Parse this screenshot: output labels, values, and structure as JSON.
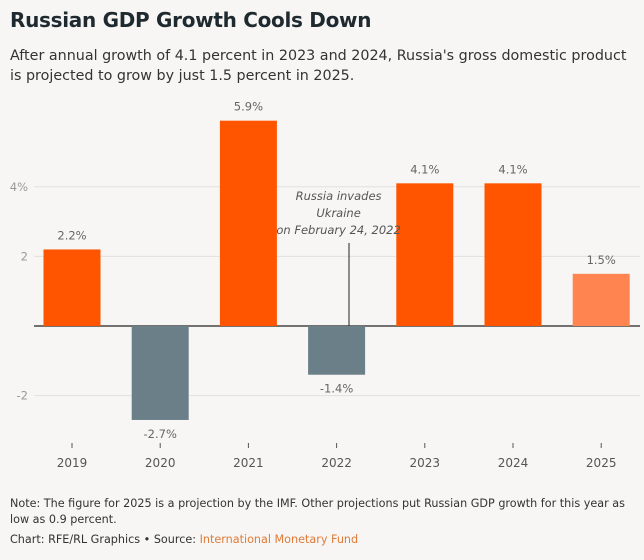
{
  "title": "Russian GDP Growth Cools Down",
  "subtitle": "After annual growth of 4.1 percent in 2023 and 2024, Russia's gross domestic product is projected to grow by just 1.5 percent in 2025.",
  "note": "Note: The figure for 2025 is a projection by the IMF. Other projections put Russian GDP growth for this year as low as 0.9 percent.",
  "credit": {
    "chart": "Chart: RFE/RL Graphics",
    "separator": " • ",
    "source_label": "Source: ",
    "source": "International Monetary Fund"
  },
  "colors": {
    "positive": "#ff5500",
    "negative": "#6b7f88",
    "projection": "#ff8450"
  },
  "chart_data": {
    "type": "bar",
    "categories": [
      "2019",
      "2020",
      "2021",
      "2022",
      "2023",
      "2024",
      "2025"
    ],
    "values": [
      2.2,
      -2.7,
      5.9,
      -1.4,
      4.1,
      4.1,
      1.5
    ],
    "data_labels": [
      "2.2%",
      "-2.7%",
      "5.9%",
      "-1.4%",
      "4.1%",
      "4.1%",
      "1.5%"
    ],
    "projected": [
      false,
      false,
      false,
      false,
      false,
      false,
      true
    ],
    "yticks": [
      {
        "value": 4,
        "label": "4%"
      },
      {
        "value": 2,
        "label": "2"
      },
      {
        "value": -2,
        "label": "-2"
      }
    ],
    "grid": true,
    "annotation": {
      "category": "2022",
      "lines": [
        "Russia invades",
        "Ukraine",
        "on February 24, 2022"
      ]
    }
  }
}
